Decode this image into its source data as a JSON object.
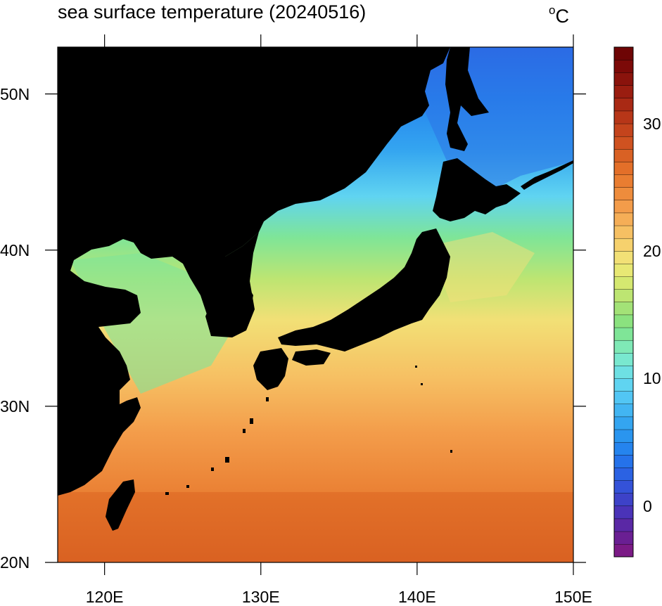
{
  "title": "sea surface temperature (20240516)",
  "units": "°C",
  "units_degree": "o",
  "units_letter": "C",
  "map": {
    "lon_range": [
      117,
      150
    ],
    "lat_range": [
      20,
      53
    ],
    "lat_ticks": [
      {
        "value": 20,
        "label": "20N"
      },
      {
        "value": 30,
        "label": "30N"
      },
      {
        "value": 40,
        "label": "40N"
      },
      {
        "value": 50,
        "label": "50N"
      }
    ],
    "lon_ticks": [
      {
        "value": 120,
        "label": "120E"
      },
      {
        "value": 130,
        "label": "130E"
      },
      {
        "value": 140,
        "label": "140E"
      },
      {
        "value": 150,
        "label": "150E"
      }
    ],
    "land_color": "#000000"
  },
  "colorbar": {
    "min": -4,
    "max": 36,
    "step": 1,
    "tick_labels": [
      {
        "value": 0,
        "label": "0"
      },
      {
        "value": 10,
        "label": "10"
      },
      {
        "value": 20,
        "label": "20"
      },
      {
        "value": 30,
        "label": "30"
      }
    ],
    "colors": [
      "#7b1a86",
      "#6a1f93",
      "#5a28a5",
      "#4a33b8",
      "#3d42c8",
      "#3452d8",
      "#2b62e3",
      "#2572ea",
      "#2584ee",
      "#2a95ef",
      "#34a5f0",
      "#42b5f2",
      "#52c6f4",
      "#60d4f1",
      "#6ee0e3",
      "#79e8cf",
      "#7fe9b6",
      "#7fe597",
      "#8be27f",
      "#a3e277",
      "#bde572",
      "#d5e870",
      "#e8e874",
      "#f2e076",
      "#f6d16d",
      "#f6c063",
      "#f5ae57",
      "#f39c4a",
      "#ee8c3c",
      "#e97d31",
      "#e36f29",
      "#d96124",
      "#cf5220",
      "#c4441c",
      "#b73618",
      "#a92914",
      "#9a1d10",
      "#8a130c",
      "#7c0a08",
      "#6e0505"
    ]
  },
  "sst_field": {
    "description_keys": [
      "south_warm",
      "north_cold"
    ],
    "sample_points": [
      {
        "lon": 125,
        "lat": 22,
        "sst": 30
      },
      {
        "lon": 140,
        "lat": 22,
        "sst": 29
      },
      {
        "lon": 140,
        "lat": 30,
        "sst": 25
      },
      {
        "lon": 145,
        "lat": 35,
        "sst": 22
      },
      {
        "lon": 128,
        "lat": 34,
        "sst": 18
      },
      {
        "lon": 132,
        "lat": 40,
        "sst": 13
      },
      {
        "lon": 135,
        "lat": 44,
        "sst": 8
      },
      {
        "lon": 147,
        "lat": 48,
        "sst": 4
      },
      {
        "lon": 120,
        "lat": 38,
        "sst": 14
      }
    ]
  }
}
